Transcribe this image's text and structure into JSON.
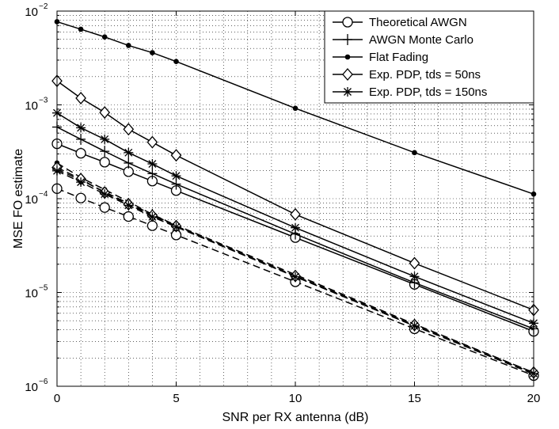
{
  "chart_data": {
    "type": "line",
    "xlabel": "SNR per RX antenna (dB)",
    "ylabel": "MSE FO estimate",
    "xlim": [
      0,
      20
    ],
    "ylim": [
      1e-06,
      0.01
    ],
    "yscale": "log",
    "grid": true,
    "legend_position": "top-right",
    "x_ticks": [
      {
        "value": 0,
        "label": "0"
      },
      {
        "value": 5,
        "label": "5"
      },
      {
        "value": 10,
        "label": "10"
      },
      {
        "value": 15,
        "label": "15"
      },
      {
        "value": 20,
        "label": "20"
      }
    ],
    "y_ticks": [
      {
        "value": 1e-06,
        "base": "10",
        "exp": "−6"
      },
      {
        "value": 1e-05,
        "base": "10",
        "exp": "−5"
      },
      {
        "value": 0.0001,
        "base": "10",
        "exp": "−4"
      },
      {
        "value": 0.001,
        "base": "10",
        "exp": "−3"
      },
      {
        "value": 0.01,
        "base": "10",
        "exp": "−2"
      }
    ],
    "series": [
      {
        "name": "Theoretical AWGN",
        "marker": "circle",
        "line": "solid",
        "legend": true,
        "x": [
          0,
          1,
          2,
          3,
          4,
          5,
          10,
          15,
          20
        ],
        "y": [
          0.000385,
          0.000305,
          0.000245,
          0.000194,
          0.000154,
          0.000122,
          3.85e-05,
          1.22e-05,
          3.85e-06
        ]
      },
      {
        "name": "AWGN Monte Carlo",
        "marker": "plus",
        "line": "solid",
        "legend": true,
        "x": [
          0,
          1,
          2,
          3,
          4,
          5,
          10,
          15,
          20
        ],
        "y": [
          0.00058,
          0.00043,
          0.00032,
          0.00024,
          0.000185,
          0.000143,
          4.2e-05,
          1.27e-05,
          4.1e-06
        ]
      },
      {
        "name": "Flat Fading",
        "marker": "dot",
        "line": "solid",
        "legend": true,
        "x": [
          0,
          1,
          2,
          3,
          4,
          5,
          10,
          15,
          20
        ],
        "y": [
          0.0077,
          0.0064,
          0.0053,
          0.0043,
          0.0036,
          0.0029,
          0.00092,
          0.00031,
          0.000112
        ]
      },
      {
        "name": "Exp. PDP, tds = 50ns",
        "marker": "diamond",
        "line": "solid",
        "legend": true,
        "x": [
          0,
          1,
          2,
          3,
          4,
          5,
          10,
          15,
          20
        ],
        "y": [
          0.0018,
          0.00118,
          0.00083,
          0.00055,
          0.0004,
          0.00029,
          6.8e-05,
          2.05e-05,
          6.5e-06
        ]
      },
      {
        "name": "Exp. PDP, tds = 150ns",
        "marker": "asterisk",
        "line": "solid",
        "legend": true,
        "x": [
          0,
          1,
          2,
          3,
          4,
          5,
          10,
          15,
          20
        ],
        "y": [
          0.00082,
          0.00057,
          0.00043,
          0.00031,
          0.000235,
          0.000175,
          4.9e-05,
          1.48e-05,
          4.7e-06
        ]
      },
      {
        "name": "",
        "marker": "circle",
        "line": "dashed",
        "legend": false,
        "x": [
          0,
          1,
          2,
          3,
          4,
          5,
          10,
          15,
          20
        ],
        "y": [
          0.000128,
          0.0001015,
          8.05e-05,
          6.45e-05,
          5.15e-05,
          4.1e-05,
          1.3e-05,
          4.1e-06,
          1.3e-06
        ]
      },
      {
        "name": "",
        "marker": "plus",
        "line": "dashed",
        "legend": false,
        "x": [
          0,
          1,
          2,
          3,
          4,
          5,
          10,
          15,
          20
        ],
        "y": [
          0.000205,
          0.000158,
          0.000118,
          8.9e-05,
          6.8e-05,
          5.1e-05,
          1.48e-05,
          4.4e-06,
          1.35e-06
        ]
      },
      {
        "name": "",
        "marker": "dot",
        "line": "dashed",
        "legend": false,
        "x": [
          0,
          1,
          2,
          3,
          4,
          5,
          10,
          15,
          20
        ],
        "y": [
          0.00024,
          0.000168,
          0.000125,
          9.3e-05,
          6.8e-05,
          5.2e-05,
          1.55e-05,
          4.6e-06,
          1.4e-06
        ]
      },
      {
        "name": "",
        "marker": "diamond",
        "line": "dashed",
        "legend": false,
        "x": [
          0,
          1,
          2,
          3,
          4,
          5,
          10,
          15,
          20
        ],
        "y": [
          0.000215,
          0.000162,
          0.000116,
          8.7e-05,
          6.6e-05,
          5.1e-05,
          1.5e-05,
          4.5e-06,
          1.4e-06
        ]
      },
      {
        "name": "",
        "marker": "asterisk",
        "line": "dashed",
        "legend": false,
        "x": [
          0,
          1,
          2,
          3,
          4,
          5,
          10,
          15,
          20
        ],
        "y": [
          0.000198,
          0.00015,
          0.000112,
          8.5e-05,
          6.4e-05,
          5e-05,
          1.47e-05,
          4.4e-06,
          1.37e-06
        ]
      }
    ]
  }
}
